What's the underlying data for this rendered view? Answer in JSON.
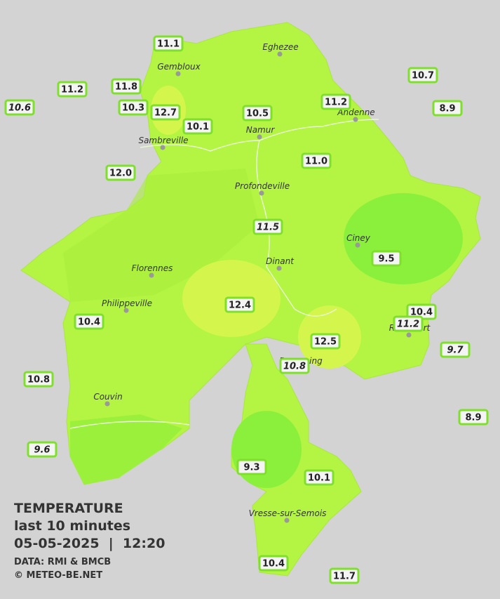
{
  "title": "TEMPERATURE",
  "subtitle": "last 10 minutes",
  "datetime": "05-05-2025  |  12:20",
  "source": "DATA: RMI & BMCB",
  "credit": "© METEO-BE.NET",
  "towns": [
    "Eghezee",
    "Gembloux",
    "Andenne",
    "Namur",
    "Sambreville",
    "Profondeville",
    "Ciney",
    "Dinant",
    "Florennes",
    "Philippeville",
    "Rochefort",
    "Beauraing",
    "Couvin",
    "Vresse-sur-Semois"
  ],
  "stations": [
    {
      "label": "11.1",
      "italic": false
    },
    {
      "label": "11.2",
      "italic": false
    },
    {
      "label": "11.8",
      "italic": false
    },
    {
      "label": "10.6",
      "italic": true
    },
    {
      "label": "10.3",
      "italic": false
    },
    {
      "label": "12.7",
      "italic": false
    },
    {
      "label": "10.1",
      "italic": false
    },
    {
      "label": "10.5",
      "italic": false
    },
    {
      "label": "11.2",
      "italic": false
    },
    {
      "label": "10.7",
      "italic": false
    },
    {
      "label": "8.9",
      "italic": false
    },
    {
      "label": "12.0",
      "italic": false
    },
    {
      "label": "11.0",
      "italic": false
    },
    {
      "label": "11.5",
      "italic": true
    },
    {
      "label": "9.5",
      "italic": false
    },
    {
      "label": "12.4",
      "italic": false
    },
    {
      "label": "10.4",
      "italic": false
    },
    {
      "label": "11.2",
      "italic": true
    },
    {
      "label": "10.4",
      "italic": false
    },
    {
      "label": "12.5",
      "italic": false
    },
    {
      "label": "9.7",
      "italic": true
    },
    {
      "label": "10.8",
      "italic": true
    },
    {
      "label": "10.8",
      "italic": false
    },
    {
      "label": "8.9",
      "italic": false
    },
    {
      "label": "9.6",
      "italic": true
    },
    {
      "label": "9.3",
      "italic": false
    },
    {
      "label": "10.1",
      "italic": false
    },
    {
      "label": "10.4",
      "italic": false
    },
    {
      "label": "11.7",
      "italic": false
    }
  ]
}
